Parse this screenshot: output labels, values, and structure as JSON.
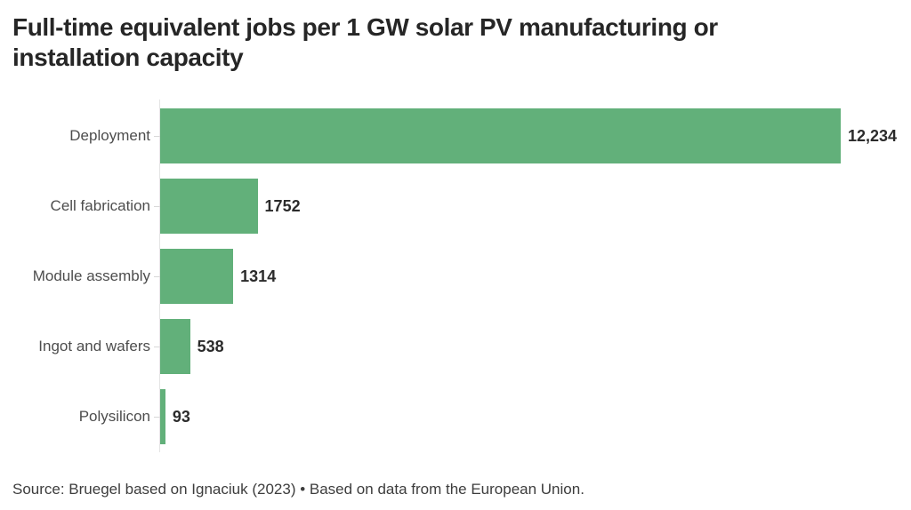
{
  "chart_data": {
    "type": "bar",
    "orientation": "horizontal",
    "title": "Full-time equivalent jobs per 1 GW solar PV manufacturing or installation capacity",
    "categories": [
      "Deployment",
      "Cell fabrication",
      "Module assembly",
      "Ingot and wafers",
      "Polysilicon"
    ],
    "values": [
      12234,
      1752,
      1314,
      538,
      93
    ],
    "value_labels": [
      "12,234",
      "1752",
      "1314",
      "538",
      "93"
    ],
    "xlim": [
      0,
      12234
    ],
    "xlabel": "",
    "ylabel": "",
    "grid": false,
    "legend_position": "none",
    "value_labels_position": "outside-end",
    "source": "Source: Bruegel based on Ignaciuk (2023) • Based on data from the European Union."
  },
  "colors": {
    "bar": "#62b07a",
    "title_text": "#262626",
    "label_text": "#4d4d4d",
    "value_text": "#2b2b2b",
    "source_text": "#3d3d3d",
    "axis_line": "#e4e4e4",
    "tick": "#d8d8d8"
  }
}
